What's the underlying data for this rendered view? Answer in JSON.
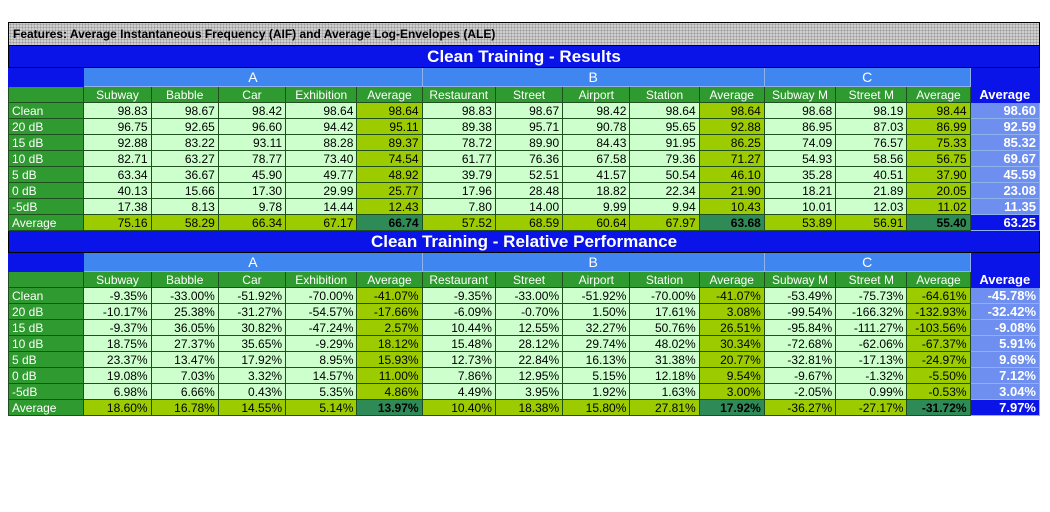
{
  "title": "Features: Average Instantaneous Frequency (AIF) and Average Log-Envelopes (ALE)",
  "groups": [
    "A",
    "B",
    "C"
  ],
  "columns": [
    "Subway",
    "Babble",
    "Car",
    "Exhibition",
    "Average",
    "Restaurant",
    "Street",
    "Airport",
    "Station",
    "Average",
    "Subway M",
    "Street M",
    "Average",
    "Average"
  ],
  "colors": {
    "header_blue": "#0a14e8",
    "group_blue": "#3f86f0",
    "label_green": "#2f9a2f",
    "cell_light": "#ccffcc",
    "avg_lime": "#9ccc00",
    "avg_dark": "#2e8b57"
  },
  "tables": [
    {
      "title": "Clean Training - Results",
      "rows": [
        {
          "label": "Clean",
          "values": [
            "98.83",
            "98.67",
            "98.42",
            "98.64",
            "98.64",
            "98.83",
            "98.67",
            "98.42",
            "98.64",
            "98.64",
            "98.68",
            "98.19",
            "98.44",
            "98.60"
          ]
        },
        {
          "label": "20 dB",
          "values": [
            "96.75",
            "92.65",
            "96.60",
            "94.42",
            "95.11",
            "89.38",
            "95.71",
            "90.78",
            "95.65",
            "92.88",
            "86.95",
            "87.03",
            "86.99",
            "92.59"
          ]
        },
        {
          "label": "15 dB",
          "values": [
            "92.88",
            "83.22",
            "93.11",
            "88.28",
            "89.37",
            "78.72",
            "89.90",
            "84.43",
            "91.95",
            "86.25",
            "74.09",
            "76.57",
            "75.33",
            "85.32"
          ]
        },
        {
          "label": "10 dB",
          "values": [
            "82.71",
            "63.27",
            "78.77",
            "73.40",
            "74.54",
            "61.77",
            "76.36",
            "67.58",
            "79.36",
            "71.27",
            "54.93",
            "58.56",
            "56.75",
            "69.67"
          ]
        },
        {
          "label": "5 dB",
          "values": [
            "63.34",
            "36.67",
            "45.90",
            "49.77",
            "48.92",
            "39.79",
            "52.51",
            "41.57",
            "50.54",
            "46.10",
            "35.28",
            "40.51",
            "37.90",
            "45.59"
          ]
        },
        {
          "label": "0 dB",
          "values": [
            "40.13",
            "15.66",
            "17.30",
            "29.99",
            "25.77",
            "17.96",
            "28.48",
            "18.82",
            "22.34",
            "21.90",
            "18.21",
            "21.89",
            "20.05",
            "23.08"
          ]
        },
        {
          "label": "-5dB",
          "values": [
            "17.38",
            "8.13",
            "9.78",
            "14.44",
            "12.43",
            "7.80",
            "14.00",
            "9.99",
            "9.94",
            "10.43",
            "10.01",
            "12.03",
            "11.02",
            "11.35"
          ]
        },
        {
          "label": "Average",
          "values": [
            "75.16",
            "58.29",
            "66.34",
            "67.17",
            "66.74",
            "57.52",
            "68.59",
            "60.64",
            "67.97",
            "63.68",
            "53.89",
            "56.91",
            "55.40",
            "63.25"
          ]
        }
      ]
    },
    {
      "title": "Clean Training - Relative Performance",
      "rows": [
        {
          "label": "Clean",
          "values": [
            "-9.35%",
            "-33.00%",
            "-51.92%",
            "-70.00%",
            "-41.07%",
            "-9.35%",
            "-33.00%",
            "-51.92%",
            "-70.00%",
            "-41.07%",
            "-53.49%",
            "-75.73%",
            "-64.61%",
            "-45.78%"
          ]
        },
        {
          "label": "20 dB",
          "values": [
            "-10.17%",
            "25.38%",
            "-31.27%",
            "-54.57%",
            "-17.66%",
            "-6.09%",
            "-0.70%",
            "1.50%",
            "17.61%",
            "3.08%",
            "-99.54%",
            "-166.32%",
            "-132.93%",
            "-32.42%"
          ]
        },
        {
          "label": "15 dB",
          "values": [
            "-9.37%",
            "36.05%",
            "30.82%",
            "-47.24%",
            "2.57%",
            "10.44%",
            "12.55%",
            "32.27%",
            "50.76%",
            "26.51%",
            "-95.84%",
            "-111.27%",
            "-103.56%",
            "-9.08%"
          ]
        },
        {
          "label": "10 dB",
          "values": [
            "18.75%",
            "27.37%",
            "35.65%",
            "-9.29%",
            "18.12%",
            "15.48%",
            "28.12%",
            "29.74%",
            "48.02%",
            "30.34%",
            "-72.68%",
            "-62.06%",
            "-67.37%",
            "5.91%"
          ]
        },
        {
          "label": "5 dB",
          "values": [
            "23.37%",
            "13.47%",
            "17.92%",
            "8.95%",
            "15.93%",
            "12.73%",
            "22.84%",
            "16.13%",
            "31.38%",
            "20.77%",
            "-32.81%",
            "-17.13%",
            "-24.97%",
            "9.69%"
          ]
        },
        {
          "label": "0 dB",
          "values": [
            "19.08%",
            "7.03%",
            "3.32%",
            "14.57%",
            "11.00%",
            "7.86%",
            "12.95%",
            "5.15%",
            "12.18%",
            "9.54%",
            "-9.67%",
            "-1.32%",
            "-5.50%",
            "7.12%"
          ]
        },
        {
          "label": "-5dB",
          "values": [
            "6.98%",
            "6.66%",
            "0.43%",
            "5.35%",
            "4.86%",
            "4.49%",
            "3.95%",
            "1.92%",
            "1.63%",
            "3.00%",
            "-2.05%",
            "0.99%",
            "-0.53%",
            "3.04%"
          ]
        },
        {
          "label": "Average",
          "values": [
            "18.60%",
            "16.78%",
            "14.55%",
            "5.14%",
            "13.97%",
            "10.40%",
            "18.38%",
            "15.80%",
            "27.81%",
            "17.92%",
            "-36.27%",
            "-27.17%",
            "-31.72%",
            "7.97%"
          ]
        }
      ]
    }
  ]
}
